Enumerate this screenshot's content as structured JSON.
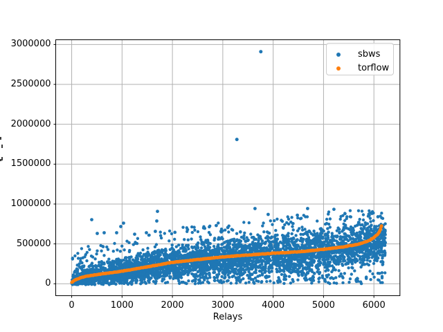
{
  "chart_data": {
    "type": "scatter",
    "title": "",
    "xlabel": "Relays",
    "ylabel_clipped_offscreen": true,
    "xlim": [
      -310,
      6510
    ],
    "ylim": [
      -145000,
      3055000
    ],
    "grid": true,
    "xticks": [
      0,
      1000,
      2000,
      3000,
      4000,
      5000,
      6000
    ],
    "yticks": [
      0,
      500000,
      1000000,
      1500000,
      2000000,
      2500000,
      3000000
    ],
    "legend_position": "upper right",
    "series": [
      {
        "name": "sbws",
        "color": "#1f77b4",
        "marker": "dot",
        "x_range": [
          0,
          6230
        ],
        "approx_point_count": 6200,
        "extreme_outliers": [
          [
            3280,
            1810000
          ],
          [
            3755,
            2910000
          ]
        ],
        "high_points": [
          [
            398,
            804000
          ],
          [
            508,
            631000
          ],
          [
            645,
            640000
          ],
          [
            892,
            640000
          ],
          [
            975,
            718000
          ],
          [
            1030,
            760000
          ],
          [
            1250,
            622000
          ],
          [
            1483,
            640000
          ],
          [
            1661,
            657000
          ],
          [
            1689,
            787000
          ],
          [
            1703,
            908000
          ],
          [
            2050,
            645000
          ],
          [
            2300,
            680000
          ],
          [
            2620,
            700000
          ],
          [
            2870,
            730000
          ],
          [
            3100,
            705000
          ],
          [
            3350,
            650000
          ],
          [
            3640,
            943000
          ],
          [
            3900,
            870000
          ],
          [
            4200,
            705000
          ],
          [
            4480,
            860000
          ],
          [
            4684,
            943000
          ],
          [
            4950,
            690000
          ],
          [
            5206,
            934000
          ],
          [
            5450,
            700000
          ],
          [
            5700,
            770000
          ],
          [
            5961,
            882000
          ],
          [
            6080,
            840000
          ]
        ],
        "cloud_model": {
          "seed": 7,
          "draw_count": 4500,
          "base_cap": 520000,
          "spread_base": 120000,
          "spread_scale": 0.42,
          "spread_cap": 400000,
          "low_fill_prob": 0.16,
          "upper_tail_prob": 0.05,
          "upper_tail_max": 260000,
          "lower_clamp": -12000,
          "upper_clamp": 945000
        }
      },
      {
        "name": "torflow",
        "color": "#ff7f0e",
        "marker": "dot",
        "curve_points": [
          [
            0,
            15000
          ],
          [
            60,
            45000
          ],
          [
            150,
            70000
          ],
          [
            300,
            95000
          ],
          [
            500,
            115000
          ],
          [
            800,
            140000
          ],
          [
            1000,
            158000
          ],
          [
            1500,
            212000
          ],
          [
            2000,
            268000
          ],
          [
            2500,
            303000
          ],
          [
            3000,
            337000
          ],
          [
            3500,
            360000
          ],
          [
            4000,
            383000
          ],
          [
            4500,
            400000
          ],
          [
            5000,
            432000
          ],
          [
            5400,
            463000
          ],
          [
            5700,
            497000
          ],
          [
            5900,
            540000
          ],
          [
            6000,
            580000
          ],
          [
            6080,
            625000
          ],
          [
            6120,
            665000
          ],
          [
            6152,
            726000
          ]
        ]
      }
    ]
  },
  "legend": {
    "entries": [
      {
        "label": "sbws",
        "color": "#1f77b4"
      },
      {
        "label": "torflow",
        "color": "#ff7f0e"
      }
    ]
  },
  "colors": {
    "background": "#ffffff",
    "grid": "#b0b0b0",
    "spine": "#000000",
    "tick": "#000000"
  }
}
